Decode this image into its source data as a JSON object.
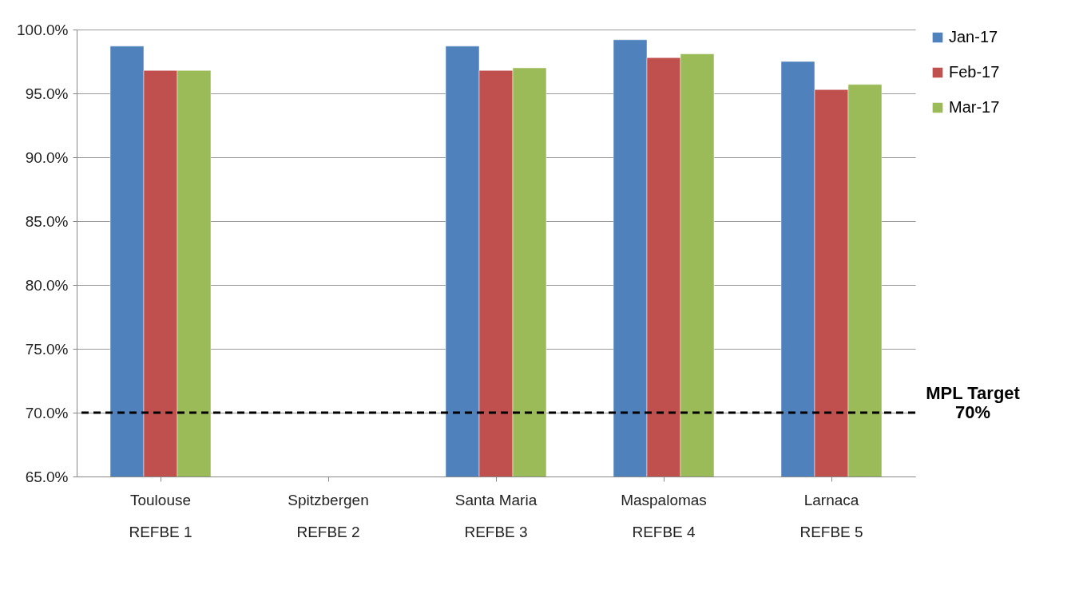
{
  "chart_data": {
    "type": "bar",
    "categories": [
      "Toulouse\nREFBE 1",
      "Spitzbergen\nREFBE 2",
      "Santa Maria\nREFBE 3",
      "Maspalomas\nREFBE 4",
      "Larnaca\nREFBE 5"
    ],
    "series": [
      {
        "name": "Jan-17",
        "color": "#4f81bd",
        "values": [
          98.7,
          null,
          98.7,
          99.2,
          97.5
        ]
      },
      {
        "name": "Feb-17",
        "color": "#c0504d",
        "values": [
          96.8,
          null,
          96.8,
          97.8,
          95.3
        ]
      },
      {
        "name": "Mar-17",
        "color": "#9bbb59",
        "values": [
          96.8,
          null,
          97.0,
          98.1,
          95.7
        ]
      }
    ],
    "ylim": [
      65,
      100
    ],
    "yticks": [
      {
        "value": 65,
        "label": "65.0%"
      },
      {
        "value": 70,
        "label": "70.0%"
      },
      {
        "value": 75,
        "label": "75.0%"
      },
      {
        "value": 80,
        "label": "80.0%"
      },
      {
        "value": 85,
        "label": "85.0%"
      },
      {
        "value": 90,
        "label": "90.0%"
      },
      {
        "value": 95,
        "label": "95.0%"
      },
      {
        "value": 100,
        "label": "100.0%"
      }
    ],
    "grid": "y",
    "legend": "right",
    "ref_lines": [
      {
        "axis": "y",
        "value": 70,
        "label": "MPL Target\n70%",
        "color": "#000000",
        "line_style": "dashed"
      }
    ]
  }
}
